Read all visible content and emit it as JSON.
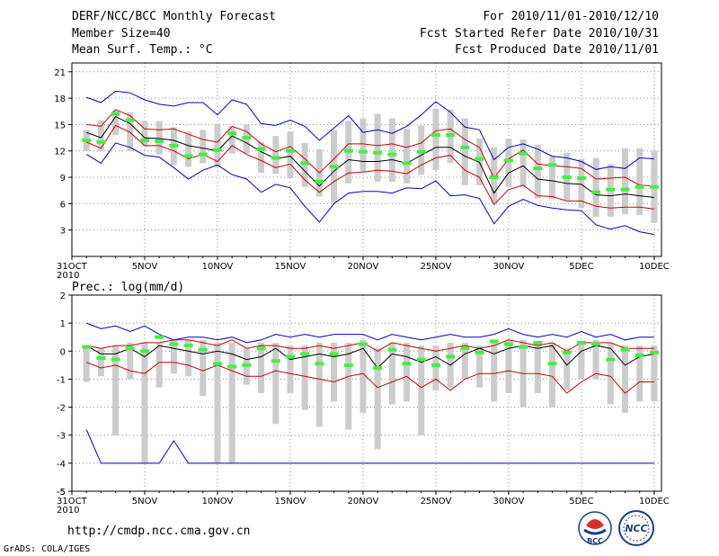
{
  "header": {
    "title": "DERF/NCC/BCC Monthly Forecast",
    "member_size": "Member Size=40",
    "variable": "Mean Surf. Temp.: °C",
    "forecast_period": "For 2010/11/01-2010/12/10",
    "started_date": "Fcst Started Refer Date 2010/10/31",
    "produced_date": "Fcst Produced Date 2010/11/01"
  },
  "footer": {
    "url": "http://cmdp.ncc.cma.gov.cn",
    "grads_credit": "GrADS: COLA/IGES",
    "logo_bcc": "BCC",
    "logo_ncc": "NCC"
  },
  "colors": {
    "ensemble_max_min": "#0000cc",
    "spread": "#cc0000",
    "mean": "#000000",
    "observed": "#44ee44",
    "members": "#cccccc",
    "grid": "#888888"
  },
  "chart_data": [
    {
      "type": "line",
      "title": "Mean Surf. Temp.: °C",
      "ylim": [
        0,
        22
      ],
      "yticks": [
        3,
        6,
        9,
        12,
        15,
        18,
        21
      ],
      "x_tick_labels": [
        "31OCT\n2010",
        "5NOV",
        "10NOV",
        "15NOV",
        "20NOV",
        "25NOV",
        "30NOV",
        "5DEC",
        "10DEC"
      ],
      "x_tick_days": [
        0,
        5,
        10,
        15,
        20,
        25,
        30,
        35,
        40
      ],
      "days": [
        1,
        2,
        3,
        4,
        5,
        6,
        7,
        8,
        9,
        10,
        11,
        12,
        13,
        14,
        15,
        16,
        17,
        18,
        19,
        20,
        21,
        22,
        23,
        24,
        25,
        26,
        27,
        28,
        29,
        30,
        31,
        32,
        33,
        34,
        35,
        36,
        37,
        38,
        39,
        40
      ],
      "series": [
        {
          "name": "ensemble max",
          "color": "#0000cc",
          "values": [
            18.1,
            17.5,
            18.8,
            18.6,
            17.8,
            17.3,
            17.1,
            17.5,
            17.5,
            16.1,
            17.8,
            17.3,
            15.1,
            14.9,
            15.5,
            14.8,
            13.2,
            14.6,
            16.0,
            14.1,
            14.4,
            14.0,
            14.8,
            16.1,
            17.6,
            16.4,
            14.7,
            14.4,
            11.0,
            12.4,
            12.8,
            12.2,
            11.4,
            11.2,
            10.8,
            9.9,
            10.2,
            10.0,
            11.2,
            11.1
          ]
        },
        {
          "name": "ensemble min",
          "color": "#0000cc",
          "values": [
            11.6,
            10.6,
            12.9,
            12.4,
            11.5,
            11.3,
            10.1,
            8.8,
            9.8,
            10.4,
            9.3,
            8.8,
            7.3,
            8.2,
            7.8,
            5.7,
            3.9,
            6.0,
            7.2,
            7.4,
            7.4,
            7.2,
            7.8,
            7.7,
            8.6,
            6.9,
            7.0,
            6.6,
            3.7,
            5.7,
            6.5,
            5.8,
            5.5,
            5.3,
            5.2,
            3.6,
            3.1,
            3.5,
            2.8,
            2.5
          ]
        },
        {
          "name": "upper spread",
          "color": "#cc0000",
          "values": [
            15.0,
            14.8,
            16.7,
            16.0,
            14.5,
            14.4,
            14.5,
            13.9,
            13.3,
            13.0,
            14.8,
            14.2,
            12.8,
            11.9,
            12.5,
            11.1,
            9.5,
            11.1,
            12.8,
            12.8,
            12.6,
            12.8,
            12.4,
            12.9,
            14.3,
            14.5,
            13.3,
            12.4,
            8.9,
            11.1,
            12.1,
            10.5,
            10.3,
            10.2,
            10.0,
            8.8,
            8.9,
            9.0,
            8.1,
            8.0
          ]
        },
        {
          "name": "ensemble mean",
          "color": "#000000",
          "values": [
            14.1,
            13.5,
            15.9,
            15.1,
            13.5,
            13.4,
            13.2,
            12.6,
            12.3,
            12.0,
            13.7,
            12.9,
            11.9,
            11.1,
            11.4,
            9.7,
            8.0,
            9.7,
            11.0,
            10.8,
            10.8,
            11.0,
            10.6,
            11.5,
            12.4,
            12.4,
            11.4,
            10.7,
            7.2,
            9.5,
            10.3,
            8.8,
            8.6,
            8.3,
            8.2,
            7.0,
            6.9,
            7.1,
            6.9,
            6.7
          ]
        },
        {
          "name": "lower spread",
          "color": "#cc0000",
          "values": [
            13.0,
            12.3,
            14.9,
            14.1,
            12.6,
            12.6,
            12.0,
            11.1,
            11.6,
            10.8,
            12.6,
            11.6,
            10.9,
            10.1,
            10.5,
            8.7,
            7.3,
            8.5,
            9.5,
            9.6,
            9.8,
            9.7,
            9.4,
            10.4,
            11.2,
            11.5,
            9.8,
            9.0,
            5.9,
            7.6,
            8.1,
            6.9,
            6.8,
            6.3,
            6.3,
            5.7,
            5.5,
            5.6,
            5.6,
            5.4
          ]
        },
        {
          "name": "observed",
          "color": "#44ee44",
          "type": "marker",
          "values": [
            13.2,
            13.0,
            16.2,
            15.5,
            13.2,
            13.1,
            12.6,
            11.4,
            11.6,
            12.1,
            14.0,
            13.5,
            12.2,
            11.2,
            12.0,
            10.6,
            8.5,
            10.2,
            12.0,
            11.9,
            11.8,
            11.6,
            10.6,
            11.9,
            13.8,
            13.8,
            12.4,
            11.1,
            9.0,
            10.9,
            11.7,
            10.0,
            10.4,
            9.0,
            8.9,
            7.3,
            7.6,
            7.6,
            7.9,
            7.9
          ]
        },
        {
          "name": "member range high",
          "color": "#cccccc",
          "type": "bar",
          "values": [
            14.4,
            15.5,
            16.6,
            16.4,
            15.4,
            15.4,
            14.7,
            14.2,
            14.4,
            15.1,
            14.8,
            15.0,
            13.0,
            13.7,
            14.2,
            12.9,
            12.2,
            14.4,
            15.4,
            15.7,
            16.2,
            15.7,
            14.5,
            14.9,
            16.8,
            16.7,
            15.7,
            13.4,
            12.4,
            13.4,
            13.3,
            12.7,
            11.4,
            11.8,
            11.1,
            11.2,
            10.5,
            12.3,
            12.3,
            12.0
          ]
        },
        {
          "name": "member range low",
          "color": "#cccccc",
          "type": "bar",
          "values": [
            12.0,
            12.0,
            13.8,
            12.0,
            12.5,
            11.6,
            10.4,
            10.2,
            10.6,
            10.2,
            11.7,
            11.7,
            9.5,
            9.4,
            8.9,
            7.9,
            6.8,
            6.1,
            8.3,
            9.7,
            8.5,
            8.5,
            8.3,
            9.3,
            9.8,
            10.6,
            8.1,
            8.1,
            6.1,
            7.9,
            7.9,
            6.6,
            6.5,
            6.4,
            5.5,
            4.5,
            4.5,
            4.8,
            4.7,
            3.8
          ]
        }
      ]
    },
    {
      "type": "line",
      "title": "Prec.: log(mm/d)",
      "ylim": [
        -5,
        2
      ],
      "yticks": [
        -5,
        -4,
        -3,
        -2,
        -1,
        0,
        1,
        2
      ],
      "x_tick_labels": [
        "31OCT\n2010",
        "5NOV",
        "10NOV",
        "15NOV",
        "20NOV",
        "25NOV",
        "30NOV",
        "5DEC",
        "10DEC"
      ],
      "x_tick_days": [
        0,
        5,
        10,
        15,
        20,
        25,
        30,
        35,
        40
      ],
      "days": [
        1,
        2,
        3,
        4,
        5,
        6,
        7,
        8,
        9,
        10,
        11,
        12,
        13,
        14,
        15,
        16,
        17,
        18,
        19,
        20,
        21,
        22,
        23,
        24,
        25,
        26,
        27,
        28,
        29,
        30,
        31,
        32,
        33,
        34,
        35,
        36,
        37,
        38,
        39,
        40
      ],
      "series": [
        {
          "name": "ensemble max",
          "color": "#0000cc",
          "values": [
            1.0,
            0.8,
            0.9,
            0.7,
            0.9,
            0.6,
            0.4,
            0.5,
            0.5,
            0.4,
            0.5,
            0.3,
            0.4,
            0.6,
            0.5,
            0.6,
            0.5,
            0.6,
            0.6,
            0.6,
            0.4,
            0.6,
            0.5,
            0.4,
            0.5,
            0.6,
            0.5,
            0.5,
            0.6,
            0.8,
            0.6,
            0.5,
            0.6,
            0.5,
            0.7,
            0.5,
            0.6,
            0.4,
            0.5,
            0.5
          ]
        },
        {
          "name": "ensemble min",
          "color": "#0000cc",
          "values": [
            -2.8,
            -4.0,
            -4.0,
            -4.0,
            -4.0,
            -4.0,
            -3.2,
            -4.0,
            -4.0,
            -4.0,
            -4.0,
            -4.0,
            -4.0,
            -4.0,
            -4.0,
            -4.0,
            -4.0,
            -4.0,
            -4.0,
            -4.0,
            -4.0,
            -4.0,
            -4.0,
            -4.0,
            -4.0,
            -4.0,
            -4.0,
            -4.0,
            -4.0,
            -4.0,
            -4.0,
            -4.0,
            -4.0,
            -4.0,
            -4.0,
            -4.0,
            -4.0,
            -4.0,
            -4.0,
            -4.0
          ]
        },
        {
          "name": "upper spread",
          "color": "#cc0000",
          "values": [
            0.2,
            0.1,
            0.2,
            0.2,
            0.3,
            0.3,
            0.4,
            0.4,
            0.3,
            0.2,
            0.4,
            0.1,
            0.2,
            0.2,
            0.1,
            0.1,
            0.2,
            0.1,
            0.2,
            0.3,
            0.0,
            0.3,
            0.2,
            0.1,
            0.0,
            0.1,
            0.2,
            0.1,
            0.2,
            0.4,
            0.3,
            0.2,
            0.3,
            0.0,
            0.3,
            0.3,
            0.3,
            0.1,
            0.1,
            0.1
          ]
        },
        {
          "name": "ensemble mean",
          "color": "#000000",
          "values": [
            0.2,
            -0.1,
            -0.1,
            0.1,
            -0.2,
            0.2,
            0.1,
            0.0,
            -0.1,
            0.0,
            -0.1,
            -0.3,
            -0.2,
            0.1,
            -0.3,
            -0.2,
            -0.1,
            -0.2,
            -0.1,
            0.1,
            -0.6,
            -0.1,
            -0.2,
            -0.4,
            -0.2,
            -0.5,
            -0.1,
            0.1,
            -0.1,
            0.1,
            0.2,
            0.1,
            0.2,
            -0.5,
            0.0,
            0.2,
            0.1,
            -0.5,
            -0.2,
            -0.1
          ]
        },
        {
          "name": "lower spread",
          "color": "#cc0000",
          "values": [
            -0.4,
            -0.6,
            -0.5,
            -0.7,
            -0.8,
            -0.4,
            -0.4,
            -0.5,
            -0.7,
            -0.5,
            -0.7,
            -0.9,
            -0.9,
            -0.7,
            -0.8,
            -0.9,
            -1.0,
            -1.1,
            -0.9,
            -0.8,
            -1.3,
            -1.1,
            -0.9,
            -1.3,
            -1.0,
            -1.4,
            -1.0,
            -0.8,
            -0.8,
            -0.7,
            -0.8,
            -0.8,
            -0.9,
            -1.5,
            -1.1,
            -0.8,
            -0.9,
            -1.5,
            -1.1,
            -1.1
          ]
        },
        {
          "name": "observed",
          "color": "#44ee44",
          "type": "marker",
          "values": [
            0.15,
            -0.25,
            -0.3,
            0.1,
            0.0,
            0.5,
            0.25,
            0.2,
            0.05,
            -0.45,
            -0.55,
            -0.5,
            0.1,
            -0.35,
            -0.2,
            -0.1,
            -0.45,
            -0.1,
            -0.5,
            0.25,
            -0.6,
            0.05,
            -0.45,
            -0.3,
            -0.5,
            -0.2,
            0.1,
            -0.05,
            0.35,
            0.25,
            0.15,
            0.3,
            -0.45,
            -0.05,
            0.3,
            0.25,
            -0.3,
            0.05,
            -0.15,
            -0.05
          ]
        },
        {
          "name": "member range high",
          "color": "#cccccc",
          "type": "bar",
          "values": [
            0.2,
            0.1,
            0.2,
            0.3,
            0.3,
            0.3,
            0.4,
            0.4,
            0.4,
            0.3,
            0.3,
            0.1,
            0.3,
            0.3,
            0.2,
            0.2,
            0.3,
            0.3,
            0.3,
            0.4,
            0.1,
            0.3,
            0.3,
            0.2,
            0.2,
            0.3,
            0.3,
            0.2,
            0.4,
            0.4,
            0.4,
            0.3,
            0.3,
            0.1,
            0.3,
            0.4,
            0.3,
            0.2,
            0.2,
            0.2
          ]
        },
        {
          "name": "member range low",
          "color": "#cccccc",
          "type": "bar",
          "values": [
            -1.1,
            -0.9,
            -3.0,
            -1.0,
            -4.0,
            -1.3,
            -0.8,
            -0.9,
            -1.6,
            -4.0,
            -4.0,
            -1.2,
            -1.5,
            -2.6,
            -1.5,
            -2.1,
            -2.7,
            -1.8,
            -2.8,
            -2.2,
            -3.5,
            -1.9,
            -1.8,
            -3.0,
            -1.4,
            -1.3,
            -1.0,
            -1.3,
            -1.8,
            -1.5,
            -2.0,
            -1.5,
            -2.0,
            -1.4,
            -1.0,
            -1.0,
            -1.9,
            -2.2,
            -1.8,
            -1.8
          ]
        }
      ]
    }
  ]
}
